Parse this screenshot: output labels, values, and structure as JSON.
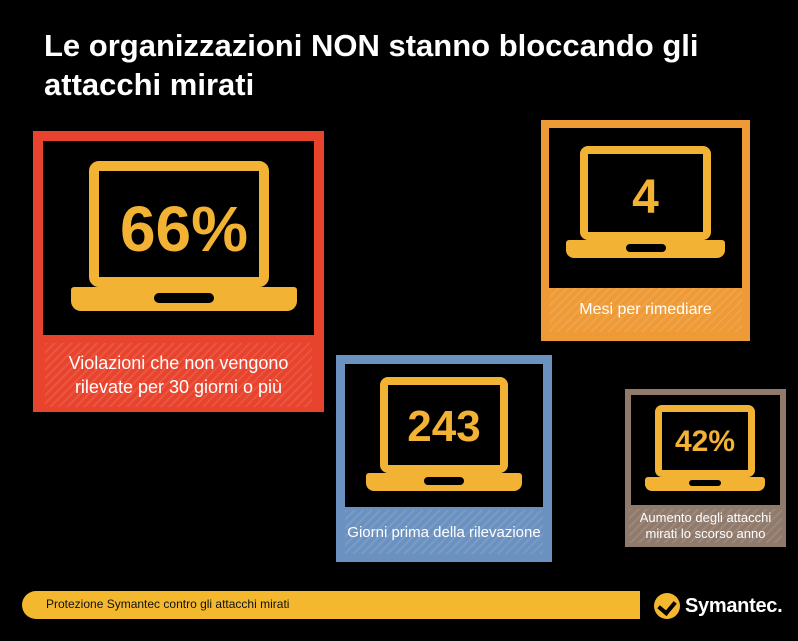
{
  "title": "Le organizzazioni NON stanno bloccando gli attacchi mirati",
  "cards": [
    {
      "value": "66%",
      "label": "Violazioni che non vengono rilevate per 30 giorni o più",
      "color": "#e8432d"
    },
    {
      "value": "4",
      "label": "Mesi per rimediare",
      "color": "#ee9a36"
    },
    {
      "value": "243",
      "label": "Giorni prima della rilevazione",
      "color": "#6a91c0"
    },
    {
      "value": "42%",
      "label": "Aumento degli attacchi mirati lo scorso anno",
      "color": "#8f7a6c"
    }
  ],
  "footer": {
    "text": "Protezione Symantec contro gli attacchi mirati"
  },
  "logo": {
    "text": "Symantec."
  },
  "accent_color": "#f2b233"
}
